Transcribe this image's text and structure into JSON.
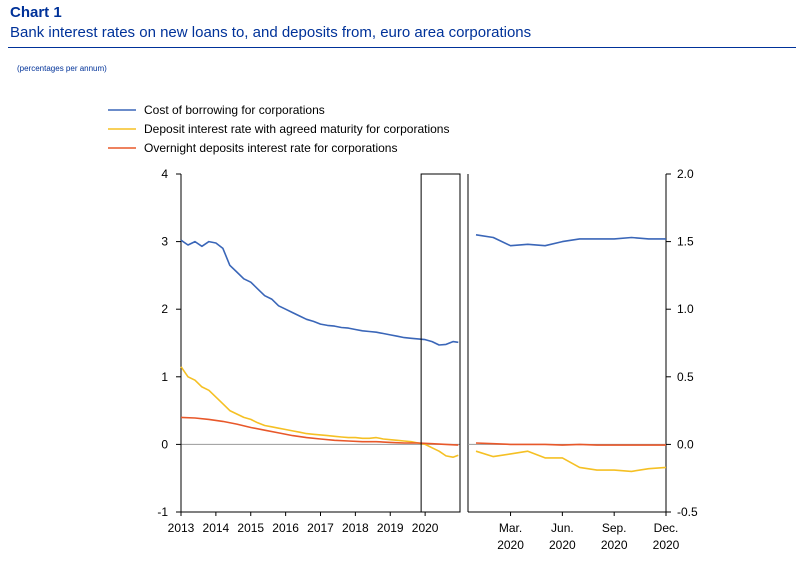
{
  "header": {
    "chart_number": "Chart 1",
    "title": "Bank interest rates on new loans to, and deposits from, euro area corporations",
    "unit_note": "(percentages per annum)"
  },
  "colors": {
    "cost_of_borrowing": "#3a66b8",
    "deposit_agreed": "#f5c024",
    "overnight": "#e8582a",
    "axis": "#000000",
    "zero_line": "#999999",
    "frame": "#000000"
  },
  "chart_data": [
    {
      "type": "line",
      "title": "",
      "xlabel": "",
      "ylabel": "",
      "ylim": [
        -1,
        4
      ],
      "yticks": [
        -1,
        0,
        1,
        2,
        3,
        4
      ],
      "xlim": [
        2013,
        2021.0
      ],
      "xticks": [
        "2013",
        "2014",
        "2015",
        "2016",
        "2017",
        "2018",
        "2019",
        "2020"
      ],
      "grid": false,
      "legend": "top-left",
      "highlight_box": [
        2020.0,
        2020.95
      ],
      "series": [
        {
          "name": "Cost of borrowing for corporations",
          "color_key": "cost_of_borrowing",
          "x": [
            2013.0,
            2013.2,
            2013.4,
            2013.6,
            2013.8,
            2014.0,
            2014.2,
            2014.4,
            2014.6,
            2014.8,
            2015.0,
            2015.2,
            2015.4,
            2015.6,
            2015.8,
            2016.0,
            2016.2,
            2016.4,
            2016.6,
            2016.8,
            2017.0,
            2017.2,
            2017.4,
            2017.6,
            2017.8,
            2018.0,
            2018.2,
            2018.4,
            2018.6,
            2018.8,
            2019.0,
            2019.2,
            2019.4,
            2019.6,
            2019.8,
            2020.0,
            2020.2,
            2020.4,
            2020.6,
            2020.8,
            2020.95
          ],
          "values": [
            3.02,
            2.95,
            3.0,
            2.93,
            3.0,
            2.98,
            2.9,
            2.65,
            2.55,
            2.45,
            2.4,
            2.3,
            2.2,
            2.15,
            2.05,
            2.0,
            1.95,
            1.9,
            1.85,
            1.82,
            1.78,
            1.76,
            1.75,
            1.73,
            1.72,
            1.7,
            1.68,
            1.67,
            1.66,
            1.64,
            1.62,
            1.6,
            1.58,
            1.57,
            1.56,
            1.55,
            1.52,
            1.47,
            1.48,
            1.52,
            1.51
          ]
        },
        {
          "name": "Deposit interest rate with agreed maturity for corporations",
          "color_key": "deposit_agreed",
          "x": [
            2013.0,
            2013.2,
            2013.4,
            2013.6,
            2013.8,
            2014.0,
            2014.2,
            2014.4,
            2014.6,
            2014.8,
            2015.0,
            2015.2,
            2015.4,
            2015.6,
            2015.8,
            2016.0,
            2016.2,
            2016.4,
            2016.6,
            2016.8,
            2017.0,
            2017.2,
            2017.4,
            2017.6,
            2017.8,
            2018.0,
            2018.2,
            2018.4,
            2018.6,
            2018.8,
            2019.0,
            2019.2,
            2019.4,
            2019.6,
            2019.8,
            2020.0,
            2020.2,
            2020.4,
            2020.6,
            2020.8,
            2020.95
          ],
          "values": [
            1.15,
            1.0,
            0.95,
            0.85,
            0.8,
            0.7,
            0.6,
            0.5,
            0.45,
            0.4,
            0.37,
            0.32,
            0.28,
            0.26,
            0.24,
            0.22,
            0.2,
            0.18,
            0.16,
            0.15,
            0.14,
            0.13,
            0.12,
            0.11,
            0.1,
            0.1,
            0.09,
            0.09,
            0.1,
            0.08,
            0.07,
            0.06,
            0.05,
            0.04,
            0.02,
            0.0,
            -0.05,
            -0.1,
            -0.17,
            -0.19,
            -0.16
          ]
        },
        {
          "name": "Overnight deposits interest rate for corporations",
          "color_key": "overnight",
          "x": [
            2013.0,
            2013.4,
            2013.8,
            2014.2,
            2014.6,
            2015.0,
            2015.4,
            2015.8,
            2016.2,
            2016.6,
            2017.0,
            2017.4,
            2017.8,
            2018.2,
            2018.6,
            2019.0,
            2019.4,
            2019.8,
            2020.2,
            2020.6,
            2020.95
          ],
          "values": [
            0.4,
            0.39,
            0.37,
            0.34,
            0.3,
            0.25,
            0.21,
            0.17,
            0.13,
            0.1,
            0.08,
            0.06,
            0.05,
            0.04,
            0.04,
            0.03,
            0.02,
            0.02,
            0.01,
            0.0,
            -0.01
          ]
        }
      ]
    },
    {
      "type": "line",
      "title": "",
      "xlabel": "",
      "ylabel": "",
      "ylim": [
        -0.5,
        2.0
      ],
      "yticks": [
        -0.5,
        0.0,
        0.5,
        1.0,
        1.5,
        2.0
      ],
      "ytick_labels": [
        "-0.5",
        "0.0",
        "0.5",
        "1.0",
        "1.5",
        "2.0"
      ],
      "xlim": [
        1,
        12
      ],
      "xticks": [
        {
          "x": 3,
          "line1": "Mar.",
          "line2": "2020"
        },
        {
          "x": 6,
          "line1": "Jun.",
          "line2": "2020"
        },
        {
          "x": 9,
          "line1": "Sep.",
          "line2": "2020"
        },
        {
          "x": 12,
          "line1": "Dec.",
          "line2": "2020"
        }
      ],
      "grid": false,
      "series": [
        {
          "name": "Cost of borrowing for corporations",
          "color_key": "cost_of_borrowing",
          "x": [
            1,
            2,
            3,
            4,
            5,
            6,
            7,
            8,
            9,
            10,
            11,
            12
          ],
          "values": [
            1.55,
            1.53,
            1.47,
            1.48,
            1.47,
            1.5,
            1.52,
            1.52,
            1.52,
            1.53,
            1.52,
            1.52
          ]
        },
        {
          "name": "Deposit interest rate with agreed maturity for corporations",
          "color_key": "deposit_agreed",
          "x": [
            1,
            2,
            3,
            4,
            5,
            6,
            7,
            8,
            9,
            10,
            11,
            12
          ],
          "values": [
            -0.05,
            -0.09,
            -0.07,
            -0.05,
            -0.1,
            -0.1,
            -0.17,
            -0.19,
            -0.19,
            -0.2,
            -0.18,
            -0.17
          ]
        },
        {
          "name": "Overnight deposits interest rate for corporations",
          "color_key": "overnight",
          "x": [
            1,
            2,
            3,
            4,
            5,
            6,
            7,
            8,
            9,
            10,
            11,
            12
          ],
          "values": [
            0.01,
            0.005,
            0.0,
            0.0,
            0.0,
            -0.005,
            0.0,
            -0.005,
            -0.005,
            -0.005,
            -0.005,
            -0.005
          ]
        }
      ]
    }
  ]
}
